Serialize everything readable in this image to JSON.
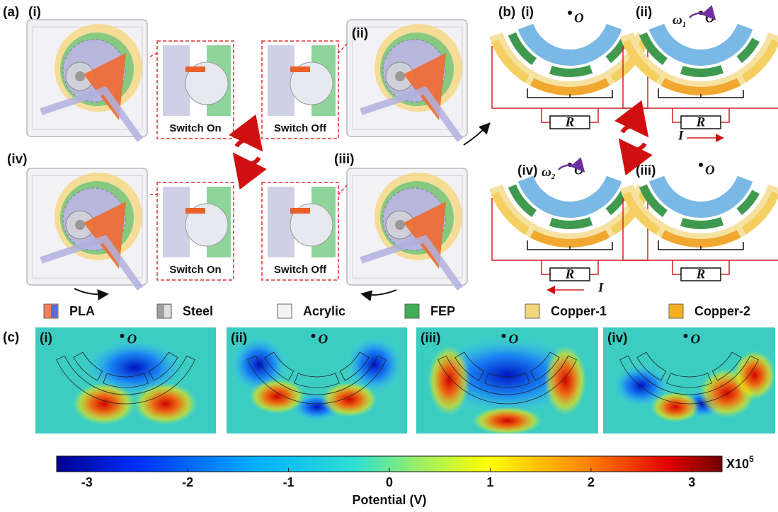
{
  "panel_a": {
    "label": "(a)",
    "devices": [
      {
        "label": "(i)"
      },
      {
        "label": "(ii)"
      },
      {
        "label": "(iv)"
      },
      {
        "label": "(iii)"
      }
    ],
    "insets": [
      {
        "label": "Switch On"
      },
      {
        "label": "Switch Off"
      },
      {
        "label": "Switch On"
      },
      {
        "label": "Switch Off"
      }
    ]
  },
  "panel_b": {
    "label": "(b)",
    "states": [
      {
        "label": "(i)",
        "center": "O",
        "resistor": "R"
      },
      {
        "label": "(ii)",
        "center": "O",
        "resistor": "R",
        "speed": "ω",
        "speed_sub": "1",
        "current": "I"
      },
      {
        "label": "(iv)",
        "center": "O",
        "resistor": "R",
        "speed": "ω",
        "speed_sub": "2",
        "current": "I"
      },
      {
        "label": "(iii)",
        "center": "O",
        "resistor": "R"
      }
    ]
  },
  "legend": [
    "PLA",
    "Steel",
    "Acrylic",
    "FEP",
    "Copper-1",
    "Copper-2"
  ],
  "panel_c": {
    "label": "(c)",
    "maps": [
      {
        "label": "(i)",
        "center": "O"
      },
      {
        "label": "(ii)",
        "center": "O"
      },
      {
        "label": "(iii)",
        "center": "O"
      },
      {
        "label": "(iv)",
        "center": "O"
      }
    ]
  },
  "colorbar": {
    "label": "Potential (V)",
    "scale_base": "X10",
    "scale_exp": "5",
    "lim": [
      -3.3,
      3.3
    ],
    "ticks": [
      -3,
      -2,
      -1,
      0,
      1,
      2,
      3
    ]
  }
}
